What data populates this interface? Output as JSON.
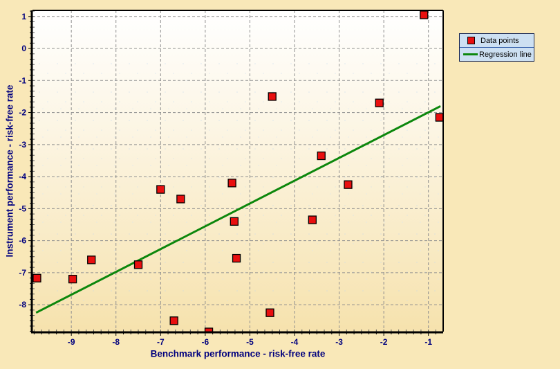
{
  "window": {
    "background": "#F9E8B8"
  },
  "chart_data": {
    "type": "scatter",
    "title": "",
    "xlabel": "Benchmark performance - risk-free rate",
    "ylabel": "Instrument performance - risk-free rate",
    "xlim": [
      -9.87,
      -0.67
    ],
    "ylim": [
      -8.84,
      1.19
    ],
    "x_ticks": [
      -9,
      -8,
      -7,
      -6,
      -5,
      -4,
      -3,
      -2,
      -1
    ],
    "y_ticks": [
      1,
      0,
      -1,
      -2,
      -3,
      -4,
      -5,
      -6,
      -7,
      -8
    ],
    "minor_ticks_per_interval": 6,
    "grid": true,
    "series": [
      {
        "name": "Data points",
        "type": "scatter",
        "marker": "square",
        "color": "#E90F0F",
        "points": [
          [
            -1.1,
            1.05
          ],
          [
            -4.5,
            -1.5
          ],
          [
            -2.1,
            -1.7
          ],
          [
            -0.75,
            -2.15
          ],
          [
            -3.4,
            -3.35
          ],
          [
            -5.4,
            -4.2
          ],
          [
            -2.8,
            -4.25
          ],
          [
            -7.0,
            -4.4
          ],
          [
            -6.55,
            -4.7
          ],
          [
            -3.6,
            -5.35
          ],
          [
            -5.35,
            -5.4
          ],
          [
            -8.55,
            -6.6
          ],
          [
            -5.3,
            -6.55
          ],
          [
            -7.5,
            -6.75
          ],
          [
            -9.77,
            -7.17
          ],
          [
            -8.97,
            -7.2
          ],
          [
            -4.55,
            -8.25
          ],
          [
            -6.7,
            -8.5
          ],
          [
            -5.92,
            -8.85
          ]
        ]
      },
      {
        "name": "Regression line",
        "type": "line",
        "color": "#0C870C",
        "points": [
          [
            -9.79,
            -8.25
          ],
          [
            -0.73,
            -1.8
          ]
        ]
      }
    ],
    "legend": {
      "position": "outside-top-right",
      "items": [
        {
          "label": "Data points",
          "marker": "square",
          "color": "#E90F0F"
        },
        {
          "label": "Regression line",
          "marker": "line",
          "color": "#0C870C"
        }
      ]
    },
    "colors": {
      "axis_text": "#00007E",
      "grid": "#8F8F8F",
      "axis_line": "#000000",
      "plot_bg_top": "#FFFFFF",
      "plot_bg_mid": "#FCF5E3",
      "plot_bg_bottom": "#F6E2AD",
      "legend_bg": "#CDE0F2",
      "legend_border": "#1B2A55",
      "legend_divider": "#3A64AD"
    }
  }
}
